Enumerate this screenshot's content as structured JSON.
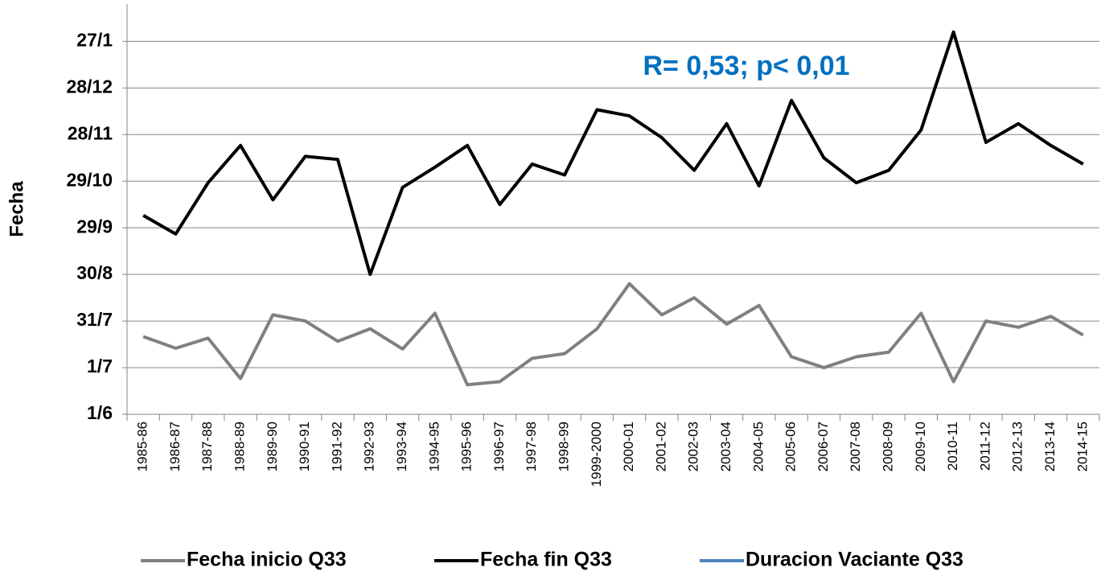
{
  "chart_data": {
    "type": "line",
    "y_label": "Fecha",
    "annotation": "R= 0,53; p< 0,01",
    "categories": [
      "1985-86",
      "1986-87",
      "1987-88",
      "1988-89",
      "1989-90",
      "1990-91",
      "1991-92",
      "1992-93",
      "1993-94",
      "1994-95",
      "1995-96",
      "1996-97",
      "1997-98",
      "1998-99",
      "1999-2000",
      "2000-01",
      "2001-02",
      "2002-03",
      "2003-04",
      "2004-05",
      "2005-06",
      "2006-07",
      "2007-08",
      "2008-09",
      "2009-10",
      "2010-11",
      "2011-12",
      "2012-13",
      "2013-14",
      "2014-15"
    ],
    "series": [
      {
        "name": "Fecha inicio Q33",
        "color": "#808080",
        "values": [
          50,
          42.5,
          49,
          23,
          64,
          60,
          47,
          55,
          42,
          65,
          19,
          21,
          36,
          39,
          55,
          84,
          64,
          75,
          58,
          70,
          37,
          30,
          37,
          40,
          65,
          21,
          60,
          56,
          63,
          51
        ]
      },
      {
        "name": "Fecha fin Q33",
        "color": "#000000",
        "values": [
          128,
          116,
          149,
          173,
          138,
          166,
          164,
          90,
          146,
          159,
          173,
          135,
          161,
          154,
          196,
          192,
          178,
          157,
          187,
          147,
          202,
          165,
          149,
          157,
          183,
          246,
          175,
          187,
          173,
          161
        ]
      },
      {
        "name": "Duracion Vaciante Q33",
        "color": "#4f81bd",
        "values": [
          null,
          null,
          null,
          null,
          null,
          null,
          null,
          null,
          null,
          null,
          null,
          null,
          null,
          null,
          null,
          null,
          null,
          null,
          null,
          null,
          null,
          null,
          null,
          null,
          null,
          null,
          null,
          null,
          null,
          null
        ]
      }
    ],
    "ylim": [
      0,
      264
    ],
    "yticks": [
      {
        "value": 0,
        "label": "1/6"
      },
      {
        "value": 30,
        "label": "1/7"
      },
      {
        "value": 60,
        "label": "31/7"
      },
      {
        "value": 90,
        "label": "30/8"
      },
      {
        "value": 120,
        "label": "29/9"
      },
      {
        "value": 150,
        "label": "29/10"
      },
      {
        "value": 180,
        "label": "28/11"
      },
      {
        "value": 210,
        "label": "28/12"
      },
      {
        "value": 240,
        "label": "27/1"
      }
    ],
    "grid": true,
    "legend": "bottom"
  }
}
